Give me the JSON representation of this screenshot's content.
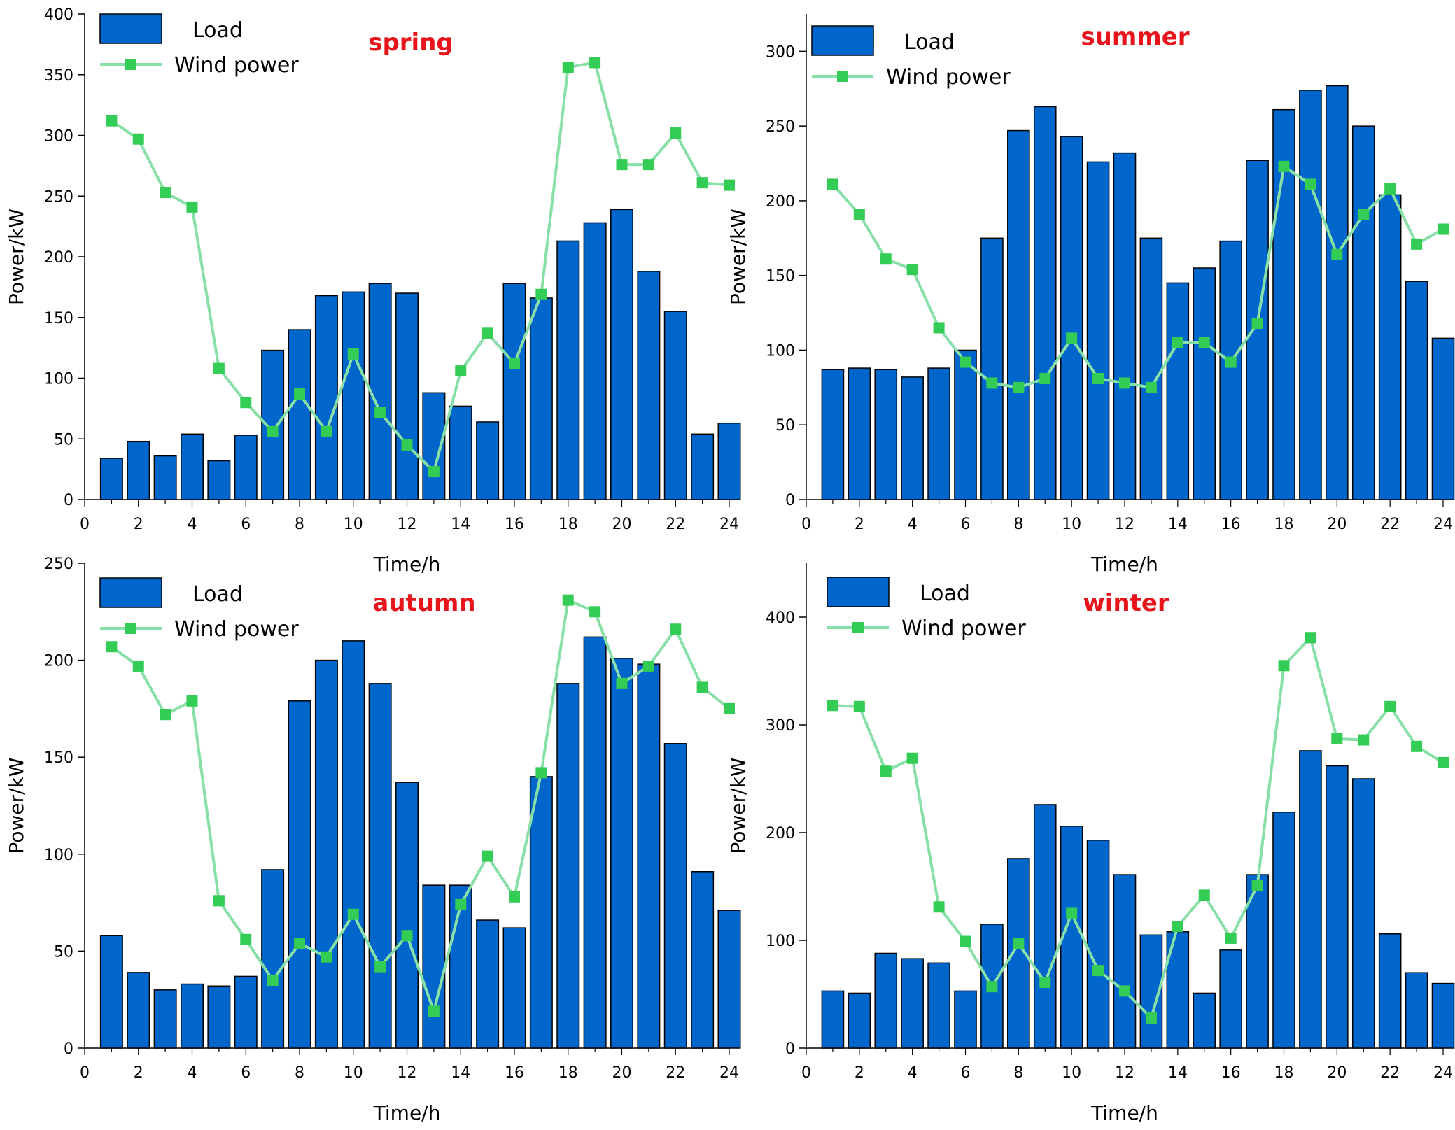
{
  "colors": {
    "load": "#0066CC",
    "load_edge": "#000000",
    "wind": "#88E0A8",
    "wind_marker": "#33CC55",
    "season": "#E8141B"
  },
  "chart_data": [
    {
      "type": "bar",
      "title": "spring",
      "xlabel": "Time/h",
      "ylabel": "Power/kW",
      "xlim": [
        0,
        24
      ],
      "ylim": [
        0,
        400
      ],
      "xticks": [
        "0",
        "2",
        "4",
        "6",
        "8",
        "10",
        "12",
        "14",
        "16",
        "18",
        "20",
        "22",
        "24"
      ],
      "yticks": [
        "0",
        "50",
        "100",
        "150",
        "200",
        "250",
        "300",
        "350",
        "400"
      ],
      "legend": [
        "Load",
        "Wind power"
      ],
      "x": [
        1,
        2,
        3,
        4,
        5,
        6,
        7,
        8,
        9,
        10,
        11,
        12,
        13,
        14,
        15,
        16,
        17,
        18,
        19,
        20,
        21,
        22,
        23,
        24
      ],
      "series": [
        {
          "name": "Load",
          "kind": "bar",
          "values": [
            34,
            48,
            36,
            54,
            32,
            53,
            123,
            140,
            168,
            171,
            178,
            170,
            88,
            77,
            64,
            178,
            166,
            213,
            228,
            239,
            188,
            155,
            54,
            63
          ]
        },
        {
          "name": "Wind power",
          "kind": "line",
          "values": [
            312,
            297,
            253,
            241,
            108,
            80,
            56,
            87,
            56,
            120,
            72,
            45,
            23,
            106,
            137,
            112,
            169,
            356,
            360,
            276,
            276,
            302,
            261,
            259
          ]
        }
      ]
    },
    {
      "type": "bar",
      "title": "summer",
      "xlabel": "Time/h",
      "ylabel": "Power/kW",
      "xlim": [
        0,
        24
      ],
      "ylim": [
        0,
        325
      ],
      "xticks": [
        "0",
        "2",
        "4",
        "6",
        "8",
        "10",
        "12",
        "14",
        "16",
        "18",
        "20",
        "22",
        "24"
      ],
      "yticks": [
        "0",
        "50",
        "100",
        "150",
        "200",
        "250",
        "300"
      ],
      "legend": [
        "Load",
        "Wind power"
      ],
      "x": [
        1,
        2,
        3,
        4,
        5,
        6,
        7,
        8,
        9,
        10,
        11,
        12,
        13,
        14,
        15,
        16,
        17,
        18,
        19,
        20,
        21,
        22,
        23,
        24
      ],
      "series": [
        {
          "name": "Load",
          "kind": "bar",
          "values": [
            87,
            88,
            87,
            82,
            88,
            100,
            175,
            247,
            263,
            243,
            226,
            232,
            175,
            145,
            155,
            173,
            227,
            261,
            274,
            277,
            250,
            204,
            146,
            108
          ]
        },
        {
          "name": "Wind power",
          "kind": "line",
          "values": [
            211,
            191,
            161,
            154,
            115,
            92,
            78,
            75,
            81,
            108,
            81,
            78,
            75,
            105,
            105,
            92,
            118,
            223,
            211,
            164,
            191,
            208,
            171,
            181
          ]
        }
      ]
    },
    {
      "type": "bar",
      "title": "autumn",
      "xlabel": "Time/h",
      "ylabel": "Power/kW",
      "xlim": [
        0,
        24
      ],
      "ylim": [
        0,
        250
      ],
      "xticks": [
        "0",
        "2",
        "4",
        "6",
        "8",
        "10",
        "12",
        "14",
        "16",
        "18",
        "20",
        "22",
        "24"
      ],
      "yticks": [
        "0",
        "50",
        "100",
        "150",
        "200",
        "250"
      ],
      "legend": [
        "Load",
        "Wind power"
      ],
      "x": [
        1,
        2,
        3,
        4,
        5,
        6,
        7,
        8,
        9,
        10,
        11,
        12,
        13,
        14,
        15,
        16,
        17,
        18,
        19,
        20,
        21,
        22,
        23,
        24
      ],
      "series": [
        {
          "name": "Load",
          "kind": "bar",
          "values": [
            58,
            39,
            30,
            33,
            32,
            37,
            92,
            179,
            200,
            210,
            188,
            137,
            84,
            84,
            66,
            62,
            140,
            188,
            212,
            201,
            198,
            157,
            91,
            71
          ]
        },
        {
          "name": "Wind power",
          "kind": "line",
          "values": [
            207,
            197,
            172,
            179,
            76,
            56,
            35,
            54,
            47,
            69,
            42,
            58,
            19,
            74,
            99,
            78,
            142,
            231,
            225,
            188,
            197,
            216,
            186,
            175
          ]
        }
      ]
    },
    {
      "type": "bar",
      "title": "winter",
      "xlabel": "Time/h",
      "ylabel": "Power/kW",
      "xlim": [
        0,
        24
      ],
      "ylim": [
        0,
        450
      ],
      "xticks": [
        "0",
        "2",
        "4",
        "6",
        "8",
        "10",
        "12",
        "14",
        "16",
        "18",
        "20",
        "22",
        "24"
      ],
      "yticks": [
        "0",
        "100",
        "200",
        "300",
        "400"
      ],
      "legend": [
        "Load",
        "Wind power"
      ],
      "x": [
        1,
        2,
        3,
        4,
        5,
        6,
        7,
        8,
        9,
        10,
        11,
        12,
        13,
        14,
        15,
        16,
        17,
        18,
        19,
        20,
        21,
        22,
        23,
        24
      ],
      "series": [
        {
          "name": "Load",
          "kind": "bar",
          "values": [
            53,
            51,
            88,
            83,
            79,
            53,
            115,
            176,
            226,
            206,
            193,
            161,
            105,
            108,
            51,
            91,
            161,
            219,
            276,
            262,
            250,
            106,
            70,
            60
          ]
        },
        {
          "name": "Wind power",
          "kind": "line",
          "values": [
            318,
            317,
            257,
            269,
            131,
            99,
            57,
            97,
            61,
            125,
            72,
            53,
            28,
            113,
            142,
            102,
            151,
            355,
            381,
            287,
            286,
            317,
            280,
            265
          ]
        }
      ]
    }
  ]
}
